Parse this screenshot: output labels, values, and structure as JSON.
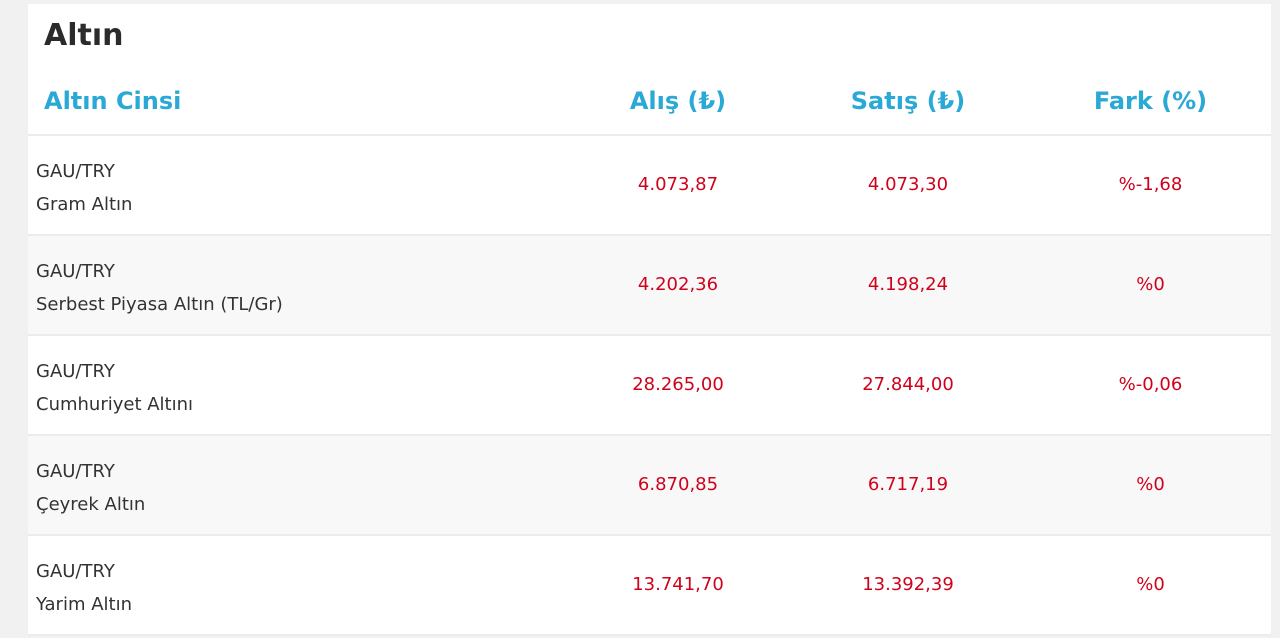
{
  "title": "Altın",
  "headers": {
    "type": "Altın Cinsi",
    "buy": "Alış (₺)",
    "sell": "Satış (₺)",
    "diff": "Fark (%)"
  },
  "rows": [
    {
      "code": "GAU/TRY",
      "name": "Gram Altın",
      "buy": "4.073,87",
      "sell": "4.073,30",
      "diff": "%-1,68"
    },
    {
      "code": "GAU/TRY",
      "name": "Serbest Piyasa Altın (TL/Gr)",
      "buy": "4.202,36",
      "sell": "4.198,24",
      "diff": "%0"
    },
    {
      "code": "GAU/TRY",
      "name": "Cumhuriyet Altını",
      "buy": "28.265,00",
      "sell": "27.844,00",
      "diff": "%-0,06"
    },
    {
      "code": "GAU/TRY",
      "name": "Çeyrek Altın",
      "buy": "6.870,85",
      "sell": "6.717,19",
      "diff": "%0"
    },
    {
      "code": "GAU/TRY",
      "name": "Yarim Altın",
      "buy": "13.741,70",
      "sell": "13.392,39",
      "diff": "%0"
    }
  ],
  "colors": {
    "header_text": "#2aa8d6",
    "value_text": "#d0021b",
    "title_text": "#2b2b2b"
  }
}
